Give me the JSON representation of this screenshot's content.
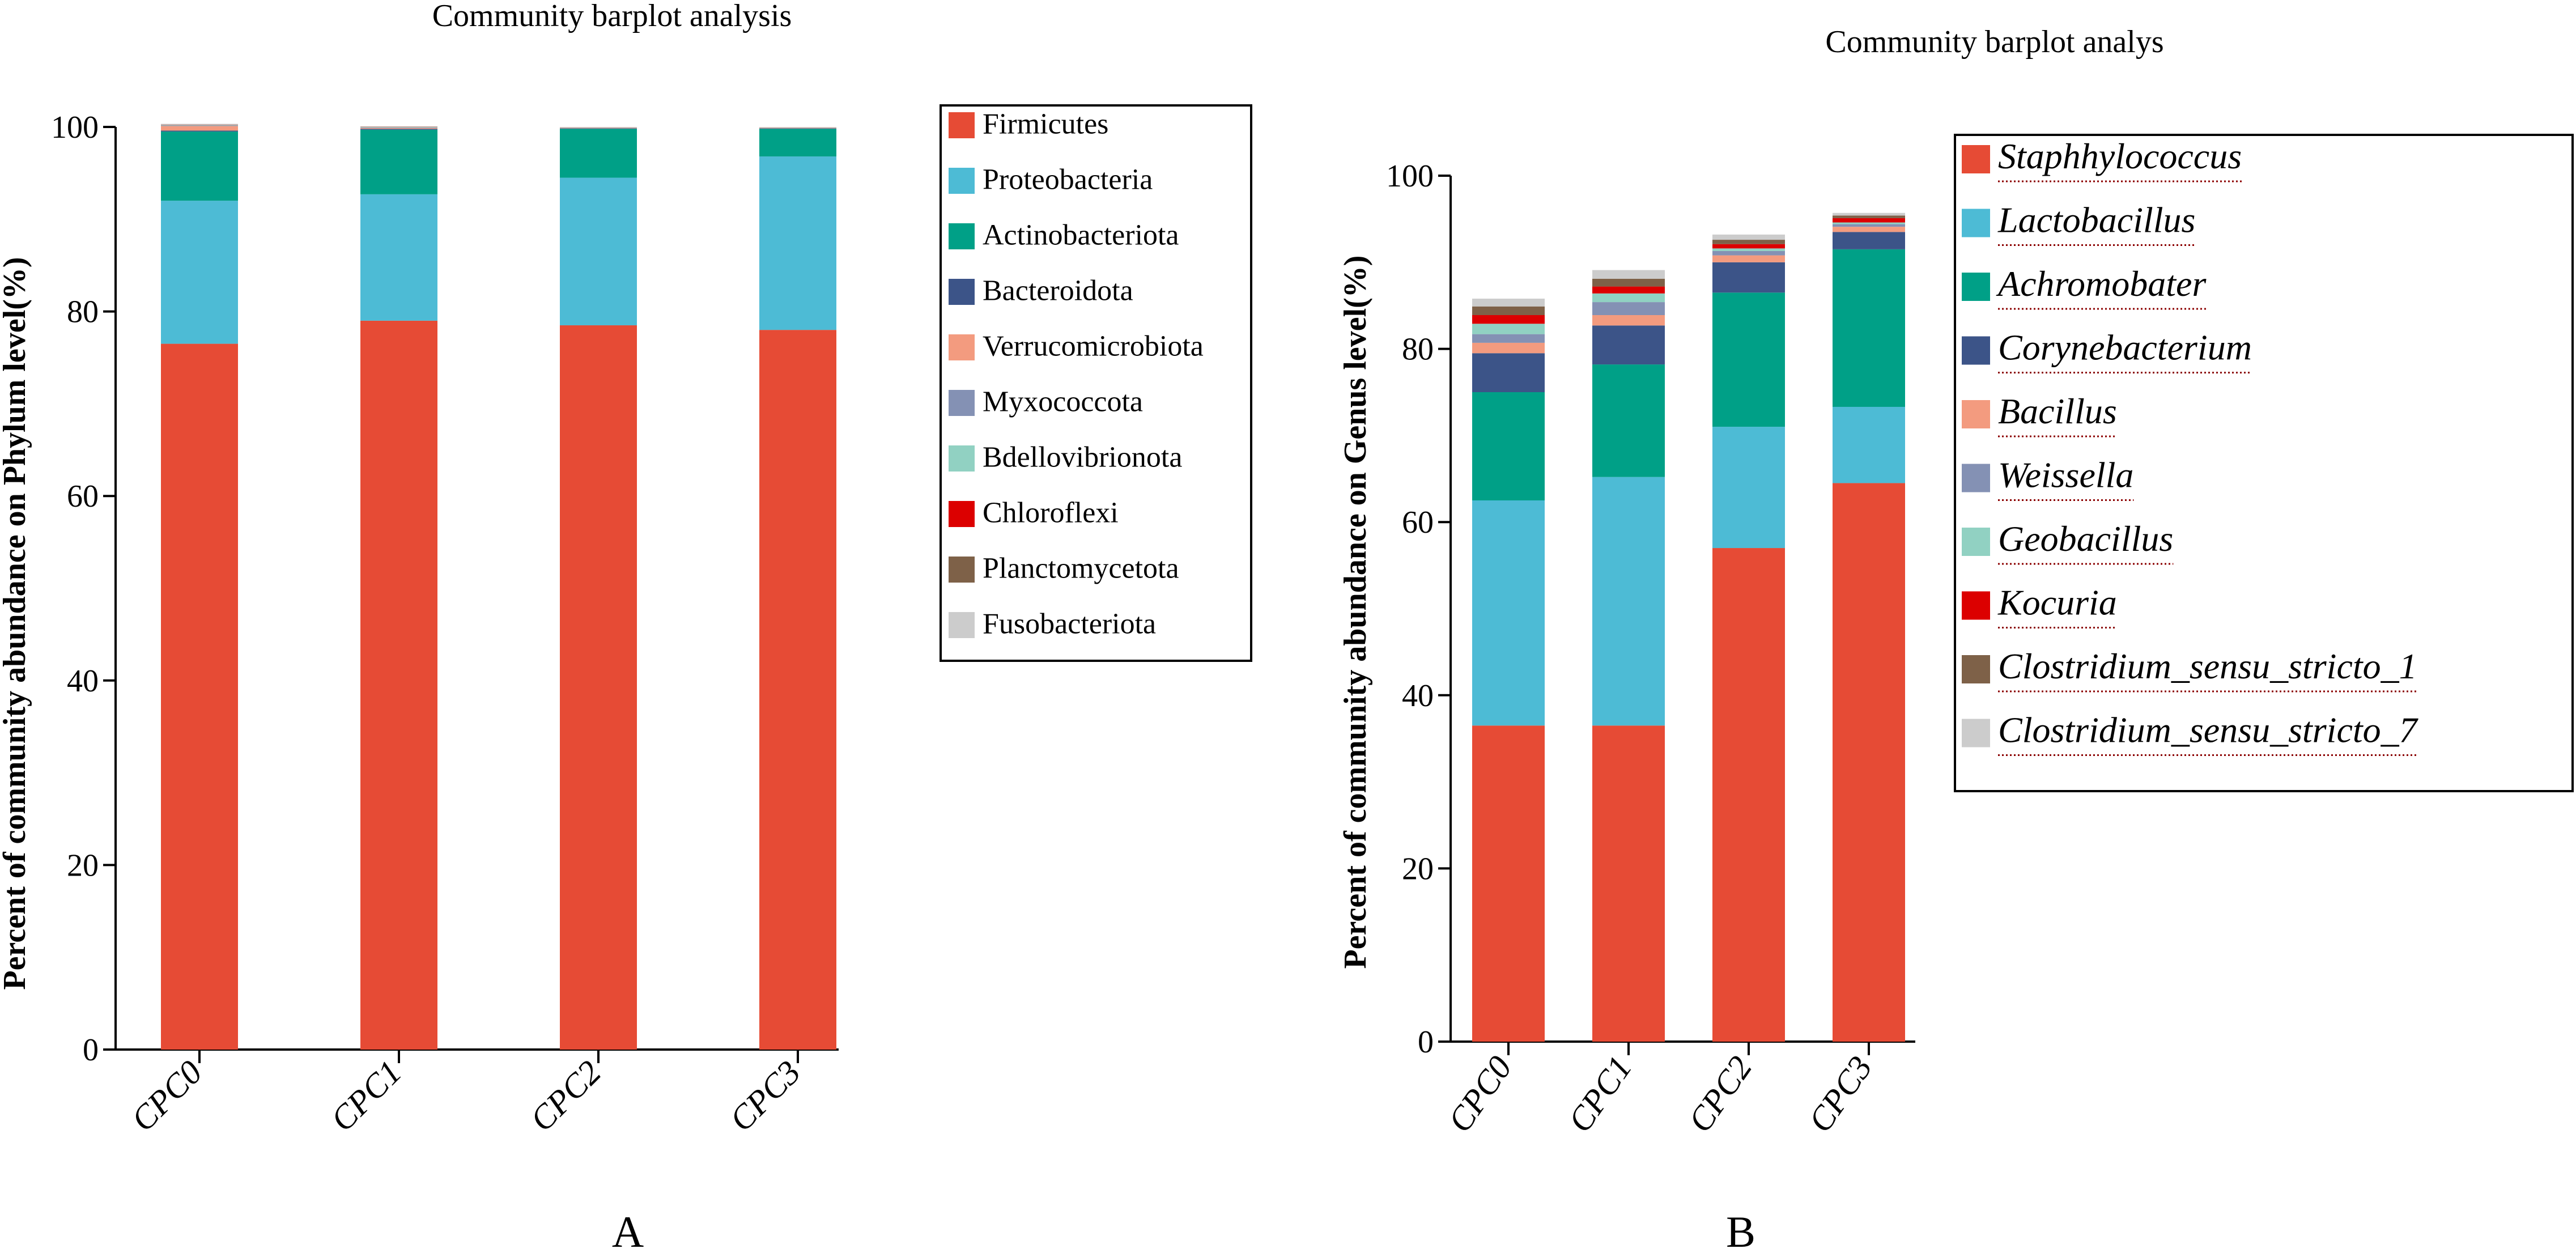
{
  "chart_data": [
    {
      "type": "bar",
      "stacked": true,
      "panel_label": "A",
      "title": "Community barplot analysis",
      "xlabel": "",
      "ylabel": "Percent of community abundance on Phylum level(%)",
      "ylim": [
        0,
        100
      ],
      "yticks": [
        "0",
        "20",
        "40",
        "60",
        "80",
        "100"
      ],
      "categories": [
        "CPC0",
        "CPC1",
        "CPC2",
        "CPC3"
      ],
      "legend_position": "right",
      "series": [
        {
          "name": "Firmicutes",
          "color": "#E64B35",
          "values": [
            76.5,
            79.0,
            78.5,
            78.0
          ]
        },
        {
          "name": "Proteobacteria",
          "color": "#4DBBD5",
          "values": [
            15.5,
            13.7,
            16.0,
            18.8
          ]
        },
        {
          "name": "Actinobacteriota",
          "color": "#00A087",
          "values": [
            7.5,
            7.0,
            5.3,
            3.0
          ]
        },
        {
          "name": "Bacteroidota",
          "color": "#3C5488",
          "values": [
            0.1,
            0.1,
            0.05,
            0.05
          ]
        },
        {
          "name": "Verrucomicrobiota",
          "color": "#F39B7F",
          "values": [
            0.5,
            0.1,
            0.05,
            0.05
          ]
        },
        {
          "name": "Myxococcota",
          "color": "#8491B4",
          "values": [
            0.05,
            0.05,
            0.02,
            0.02
          ]
        },
        {
          "name": "Bdellovibrionota",
          "color": "#91D1C2",
          "values": [
            0.05,
            0.05,
            0.02,
            0.02
          ]
        },
        {
          "name": "Chloroflexi",
          "color": "#DC0000",
          "values": [
            0.02,
            0.02,
            0.01,
            0.01
          ]
        },
        {
          "name": "Planctomycetota",
          "color": "#7E6148",
          "values": [
            0.02,
            0.02,
            0.01,
            0.01
          ]
        },
        {
          "name": "Fusobacteriota",
          "color": "#CCCCCC",
          "values": [
            0.1,
            0.02,
            0.02,
            0.01
          ]
        }
      ]
    },
    {
      "type": "bar",
      "stacked": true,
      "panel_label": "B",
      "title": "Community barplot analys",
      "xlabel": "",
      "ylabel": "Percent of community abundance on Genus level(%)",
      "ylim": [
        0,
        100
      ],
      "yticks": [
        "0",
        "20",
        "40",
        "60",
        "80",
        "100"
      ],
      "categories": [
        "CPC0",
        "CPC1",
        "CPC2",
        "CPC3"
      ],
      "legend_position": "right",
      "series": [
        {
          "name": "Staphhylococcus",
          "color": "#E64B35",
          "values": [
            36.5,
            36.5,
            57.0,
            64.5
          ]
        },
        {
          "name": "Lactobacillus",
          "color": "#4DBBD5",
          "values": [
            26.0,
            28.7,
            14.0,
            8.8
          ]
        },
        {
          "name": "Achromobater",
          "color": "#00A087",
          "values": [
            12.5,
            13.0,
            15.5,
            18.2
          ]
        },
        {
          "name": "Corynebacterium",
          "color": "#3C5488",
          "values": [
            4.5,
            4.5,
            3.5,
            2.0
          ]
        },
        {
          "name": "Bacillus",
          "color": "#F39B7F",
          "values": [
            1.2,
            1.2,
            0.8,
            0.6
          ]
        },
        {
          "name": "Weissella",
          "color": "#8491B4",
          "values": [
            1.0,
            1.5,
            0.5,
            0.3
          ]
        },
        {
          "name": "Geobacillus",
          "color": "#91D1C2",
          "values": [
            1.2,
            1.0,
            0.3,
            0.2
          ]
        },
        {
          "name": "Kocuria",
          "color": "#DC0000",
          "values": [
            1.0,
            0.8,
            0.5,
            0.5
          ]
        },
        {
          "name": "Clostridium_sensu_stricto_1",
          "color": "#7E6148",
          "values": [
            1.0,
            0.9,
            0.5,
            0.3
          ]
        },
        {
          "name": "Clostridium_sensu_stricto_7",
          "color": "#CCCCCC",
          "values": [
            0.9,
            1.0,
            0.6,
            0.3
          ]
        }
      ]
    }
  ]
}
